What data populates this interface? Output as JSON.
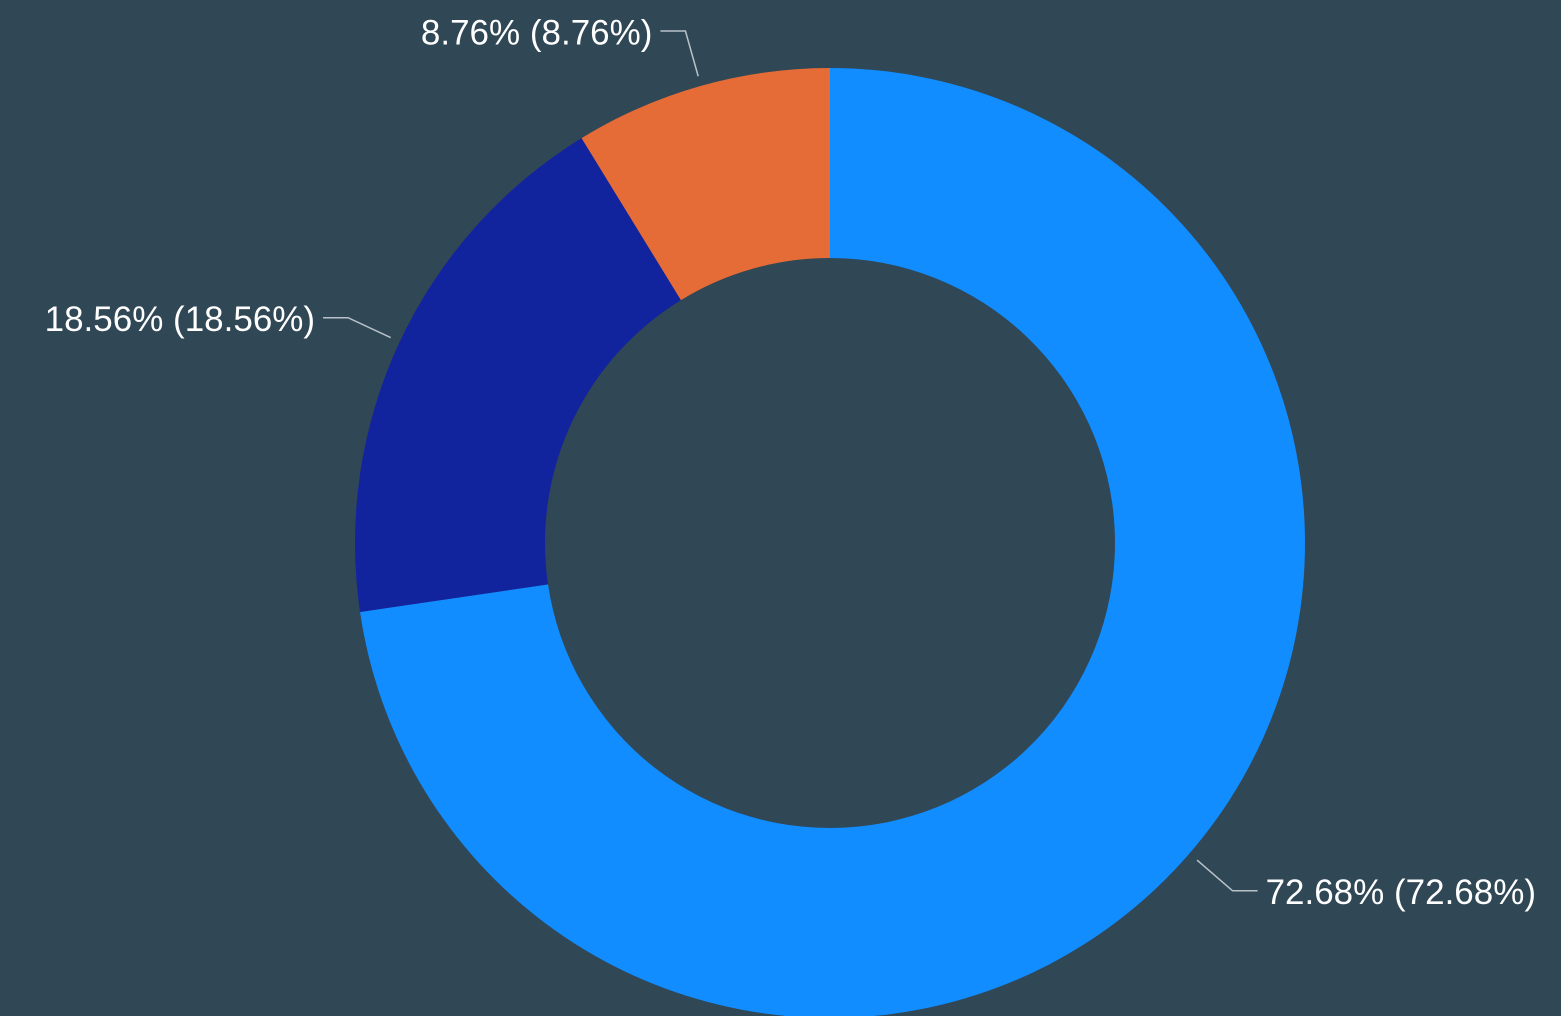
{
  "chart_data": {
    "type": "donut",
    "values": [
      72.68,
      18.56,
      8.76
    ],
    "value_labels": [
      "72.68% (72.68%)",
      "18.56% (18.56%)",
      "8.76% (8.76%)"
    ],
    "colors": [
      "#118DFF",
      "#12239E",
      "#E66C37"
    ]
  }
}
